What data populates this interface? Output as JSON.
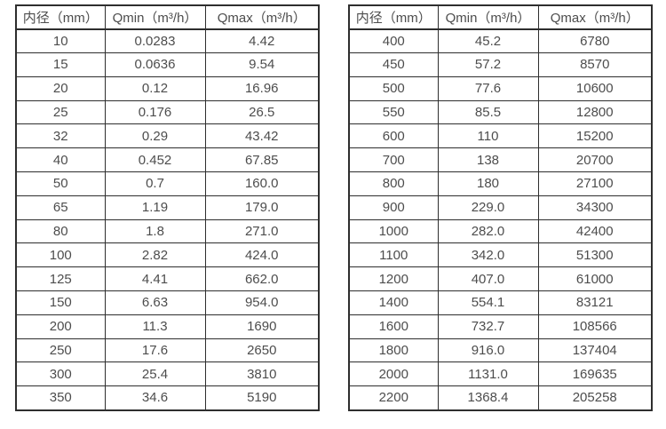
{
  "colors": {
    "text": "#4d4d4d",
    "border": "#2e2e2e",
    "background": "#ffffff"
  },
  "tables": [
    {
      "name": "flow-spec-table-left",
      "headers": [
        "内径（mm）",
        "Qmin（m³/h）",
        "Qmax（m³/h）"
      ],
      "rows": [
        [
          "10",
          "0.0283",
          "4.42"
        ],
        [
          "15",
          "0.0636",
          "9.54"
        ],
        [
          "20",
          "0.12",
          "16.96"
        ],
        [
          "25",
          "0.176",
          "26.5"
        ],
        [
          "32",
          "0.29",
          "43.42"
        ],
        [
          "40",
          "0.452",
          "67.85"
        ],
        [
          "50",
          "0.7",
          "160.0"
        ],
        [
          "65",
          "1.19",
          "179.0"
        ],
        [
          "80",
          "1.8",
          "271.0"
        ],
        [
          "100",
          "2.82",
          "424.0"
        ],
        [
          "125",
          "4.41",
          "662.0"
        ],
        [
          "150",
          "6.63",
          "954.0"
        ],
        [
          "200",
          "11.3",
          "1690"
        ],
        [
          "250",
          "17.6",
          "2650"
        ],
        [
          "300",
          "25.4",
          "3810"
        ],
        [
          "350",
          "34.6",
          "5190"
        ]
      ]
    },
    {
      "name": "flow-spec-table-right",
      "headers": [
        "内径（mm）",
        "Qmin（m³/h）",
        "Qmax（m³/h）"
      ],
      "rows": [
        [
          "400",
          "45.2",
          "6780"
        ],
        [
          "450",
          "57.2",
          "8570"
        ],
        [
          "500",
          "77.6",
          "10600"
        ],
        [
          "550",
          "85.5",
          "12800"
        ],
        [
          "600",
          "110",
          "15200"
        ],
        [
          "700",
          "138",
          "20700"
        ],
        [
          "800",
          "180",
          "27100"
        ],
        [
          "900",
          "229.0",
          "34300"
        ],
        [
          "1000",
          "282.0",
          "42400"
        ],
        [
          "1100",
          "342.0",
          "51300"
        ],
        [
          "1200",
          "407.0",
          "61000"
        ],
        [
          "1400",
          "554.1",
          "83121"
        ],
        [
          "1600",
          "732.7",
          "108566"
        ],
        [
          "1800",
          "916.0",
          "137404"
        ],
        [
          "2000",
          "1131.0",
          "169635"
        ],
        [
          "2200",
          "1368.4",
          "205258"
        ]
      ]
    }
  ]
}
